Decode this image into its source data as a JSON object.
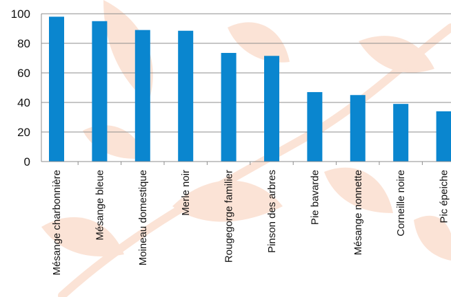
{
  "chart_data": {
    "type": "bar",
    "title": "",
    "xlabel": "",
    "ylabel": "",
    "categories": [
      "Mésange charbonnière",
      "Mésange bleue",
      "Moineau domestique",
      "Merle noir",
      "Rougegorge familier",
      "Pinson des arbres",
      "Pie bavarde",
      "Mésange nonnette",
      "Corneille noire",
      "Pic épeiche"
    ],
    "values": [
      98,
      95,
      89,
      88.5,
      73.5,
      71.5,
      47,
      45,
      39,
      34
    ],
    "ylim": [
      0,
      100
    ],
    "yticks": [
      0,
      20,
      40,
      60,
      80,
      100
    ],
    "grid": true,
    "legend": "none",
    "bar_color": "#0a86cf",
    "axis_color": "#8c8c8c",
    "background_decoration": "leaf-pattern",
    "decoration_color": "#fbe3d6"
  }
}
